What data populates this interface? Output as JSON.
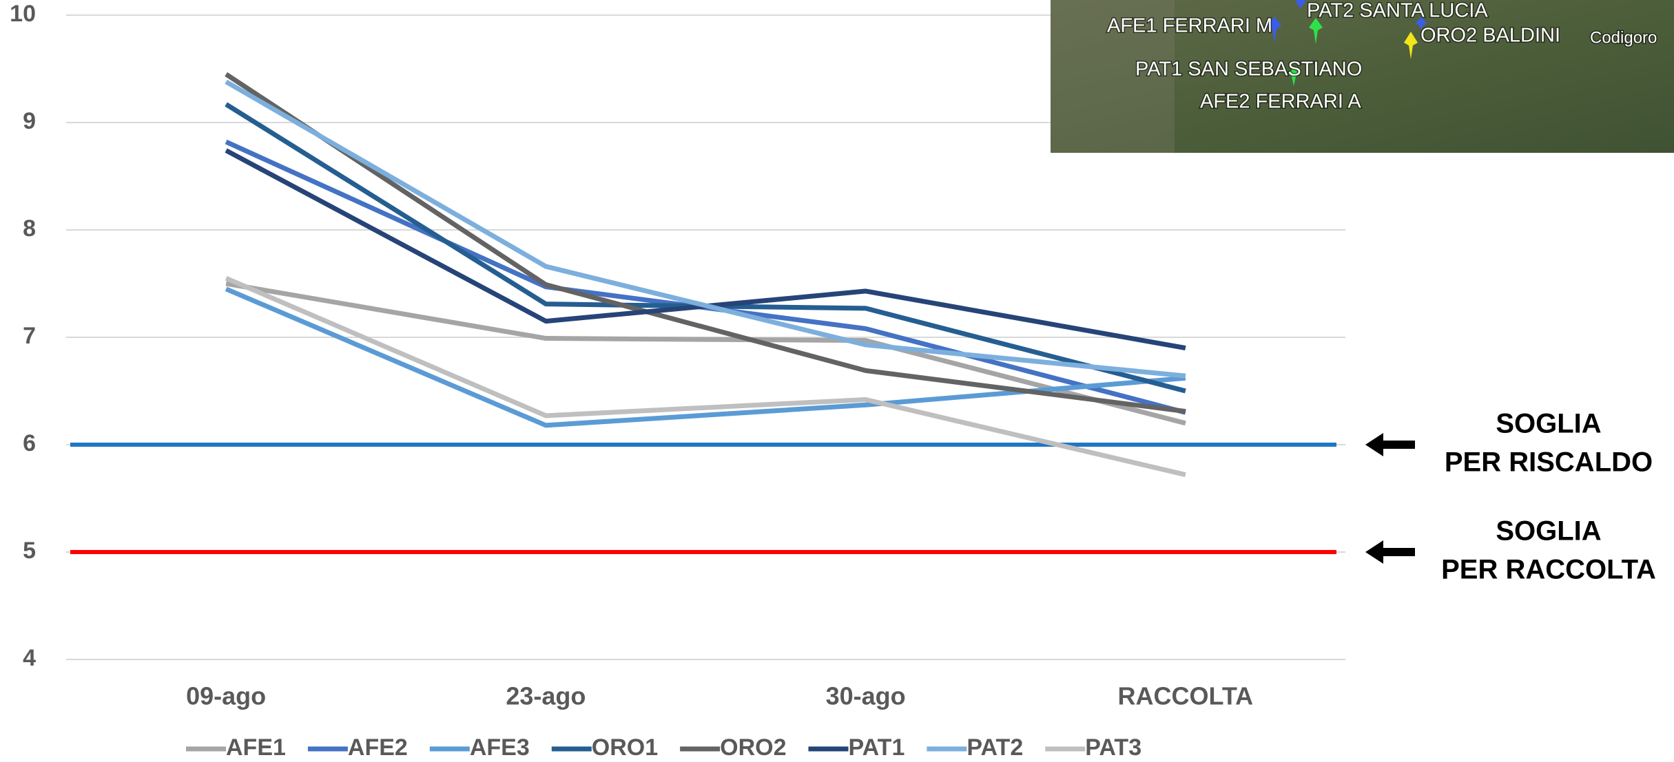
{
  "chart_data": {
    "type": "line",
    "categories": [
      "09-ago",
      "23-ago",
      "30-ago",
      "RACCOLTA"
    ],
    "series": [
      {
        "name": "AFE1",
        "color": "#a5a5a5",
        "values": [
          7.5,
          6.99,
          6.97,
          6.2
        ]
      },
      {
        "name": "AFE2",
        "color": "#4472c4",
        "values": [
          8.82,
          7.47,
          7.08,
          6.3
        ]
      },
      {
        "name": "AFE3",
        "color": "#5b9bd5",
        "values": [
          7.45,
          6.18,
          6.37,
          6.62
        ]
      },
      {
        "name": "ORO1",
        "color": "#255e91",
        "values": [
          9.17,
          7.31,
          7.27,
          6.5
        ]
      },
      {
        "name": "ORO2",
        "color": "#636363",
        "values": [
          9.45,
          7.49,
          6.69,
          6.31
        ]
      },
      {
        "name": "PAT1",
        "color": "#264478",
        "values": [
          8.74,
          7.15,
          7.43,
          6.9
        ]
      },
      {
        "name": "PAT2",
        "color": "#7cafdd",
        "values": [
          9.38,
          7.66,
          6.93,
          6.64
        ]
      },
      {
        "name": "PAT3",
        "color": "#bfbfbf",
        "values": [
          7.55,
          6.27,
          6.42,
          5.72
        ]
      }
    ],
    "ylim": [
      4,
      10
    ],
    "yticks": [
      4,
      5,
      6,
      7,
      8,
      9,
      10
    ],
    "grid": true,
    "thresholds": [
      {
        "value": 6,
        "color": "#1f77c4",
        "label": [
          "SOGLIA",
          "PER RISCALDO"
        ]
      },
      {
        "value": 5,
        "color": "#ff0000",
        "label": [
          "SOGLIA",
          "PER RACCOLTA"
        ]
      }
    ]
  },
  "map": {
    "labels": [
      "AFE1 FERRARI M",
      "PAT2 SANTA LUCIA",
      "ORO2 BALDINI",
      "Codigoro",
      "PAT1 SAN SEBASTIANO",
      "AFE2 FERRARI A"
    ]
  }
}
